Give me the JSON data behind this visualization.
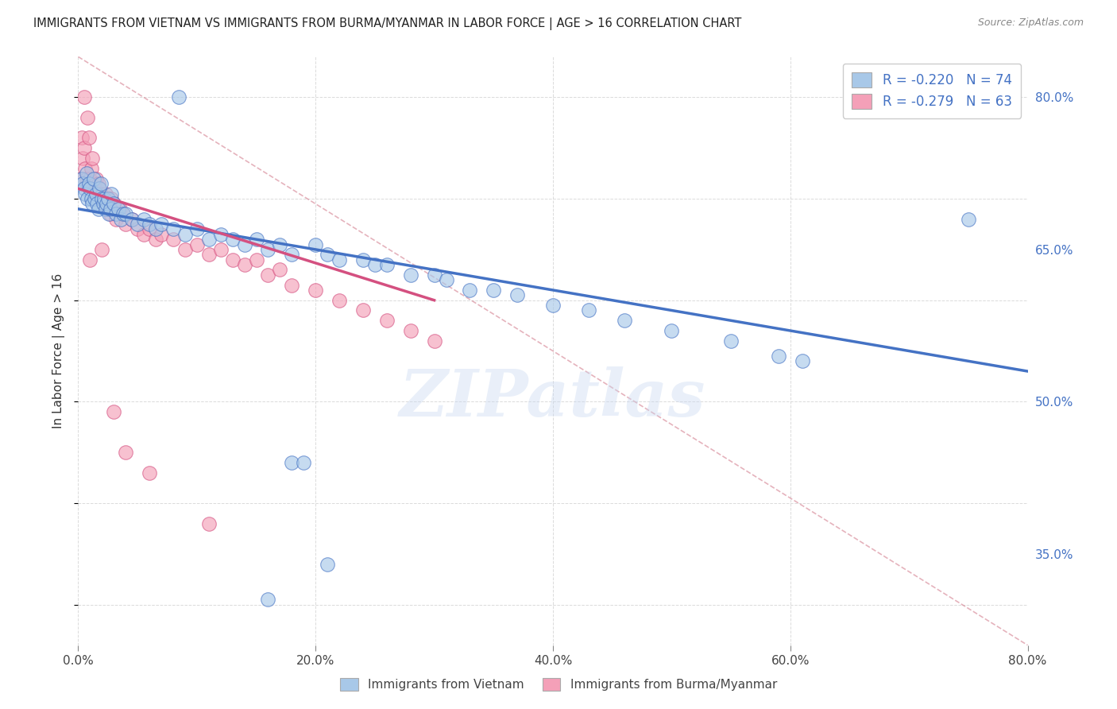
{
  "title": "IMMIGRANTS FROM VIETNAM VS IMMIGRANTS FROM BURMA/MYANMAR IN LABOR FORCE | AGE > 16 CORRELATION CHART",
  "source": "Source: ZipAtlas.com",
  "ylabel": "In Labor Force | Age > 16",
  "x_tick_labels": [
    "0.0%",
    "20.0%",
    "40.0%",
    "60.0%",
    "80.0%"
  ],
  "x_tick_vals": [
    0.0,
    0.2,
    0.4,
    0.6,
    0.8
  ],
  "y_tick_labels_right": [
    "80.0%",
    "65.0%",
    "50.0%",
    "35.0%"
  ],
  "y_tick_vals": [
    0.8,
    0.65,
    0.5,
    0.35
  ],
  "xlim": [
    0.0,
    0.8
  ],
  "ylim": [
    0.26,
    0.84
  ],
  "legend_r_vietnam": "-0.220",
  "legend_n_vietnam": "74",
  "legend_r_burma": "-0.279",
  "legend_n_burma": "63",
  "color_vietnam": "#a8c8e8",
  "color_burma": "#f4a0b8",
  "trendline_color_vietnam": "#4472c4",
  "trendline_color_burma": "#d45080",
  "ref_line_color": "#d48090",
  "watermark": "ZIPatlas",
  "background_color": "#ffffff",
  "grid_color": "#cccccc",
  "vietnam_x": [
    0.003,
    0.004,
    0.005,
    0.006,
    0.007,
    0.008,
    0.009,
    0.01,
    0.011,
    0.012,
    0.013,
    0.014,
    0.015,
    0.016,
    0.017,
    0.018,
    0.019,
    0.02,
    0.021,
    0.022,
    0.023,
    0.024,
    0.025,
    0.026,
    0.027,
    0.028,
    0.03,
    0.032,
    0.034,
    0.036,
    0.038,
    0.04,
    0.045,
    0.05,
    0.055,
    0.06,
    0.065,
    0.07,
    0.08,
    0.09,
    0.1,
    0.11,
    0.12,
    0.13,
    0.14,
    0.15,
    0.16,
    0.17,
    0.18,
    0.2,
    0.21,
    0.22,
    0.24,
    0.25,
    0.26,
    0.28,
    0.3,
    0.31,
    0.33,
    0.35,
    0.37,
    0.4,
    0.43,
    0.46,
    0.5,
    0.55,
    0.59,
    0.61,
    0.75,
    0.18,
    0.19,
    0.085,
    0.16,
    0.21
  ],
  "vietnam_y": [
    0.72,
    0.715,
    0.71,
    0.705,
    0.725,
    0.7,
    0.715,
    0.71,
    0.7,
    0.695,
    0.72,
    0.7,
    0.705,
    0.695,
    0.69,
    0.71,
    0.715,
    0.7,
    0.695,
    0.7,
    0.69,
    0.695,
    0.7,
    0.685,
    0.69,
    0.705,
    0.695,
    0.685,
    0.69,
    0.68,
    0.685,
    0.685,
    0.68,
    0.675,
    0.68,
    0.675,
    0.67,
    0.675,
    0.67,
    0.665,
    0.67,
    0.66,
    0.665,
    0.66,
    0.655,
    0.66,
    0.65,
    0.655,
    0.645,
    0.655,
    0.645,
    0.64,
    0.64,
    0.635,
    0.635,
    0.625,
    0.625,
    0.62,
    0.61,
    0.61,
    0.605,
    0.595,
    0.59,
    0.58,
    0.57,
    0.56,
    0.545,
    0.54,
    0.68,
    0.44,
    0.44,
    0.8,
    0.305,
    0.34
  ],
  "burma_x": [
    0.002,
    0.003,
    0.004,
    0.005,
    0.006,
    0.007,
    0.008,
    0.009,
    0.01,
    0.011,
    0.012,
    0.013,
    0.014,
    0.015,
    0.016,
    0.017,
    0.018,
    0.019,
    0.02,
    0.021,
    0.022,
    0.023,
    0.024,
    0.025,
    0.026,
    0.027,
    0.028,
    0.03,
    0.032,
    0.035,
    0.038,
    0.04,
    0.045,
    0.05,
    0.055,
    0.06,
    0.065,
    0.07,
    0.08,
    0.09,
    0.1,
    0.11,
    0.12,
    0.13,
    0.14,
    0.15,
    0.16,
    0.17,
    0.18,
    0.2,
    0.22,
    0.24,
    0.26,
    0.28,
    0.3,
    0.005,
    0.008,
    0.01,
    0.02,
    0.03,
    0.04,
    0.06,
    0.11
  ],
  "burma_y": [
    0.72,
    0.76,
    0.74,
    0.75,
    0.73,
    0.72,
    0.715,
    0.76,
    0.72,
    0.73,
    0.74,
    0.71,
    0.715,
    0.72,
    0.7,
    0.715,
    0.71,
    0.705,
    0.7,
    0.695,
    0.7,
    0.705,
    0.695,
    0.7,
    0.69,
    0.685,
    0.7,
    0.695,
    0.68,
    0.69,
    0.685,
    0.675,
    0.68,
    0.67,
    0.665,
    0.67,
    0.66,
    0.665,
    0.66,
    0.65,
    0.655,
    0.645,
    0.65,
    0.64,
    0.635,
    0.64,
    0.625,
    0.63,
    0.615,
    0.61,
    0.6,
    0.59,
    0.58,
    0.57,
    0.56,
    0.8,
    0.78,
    0.64,
    0.65,
    0.49,
    0.45,
    0.43,
    0.38
  ],
  "vietnam_trendline_x": [
    0.0,
    0.8
  ],
  "vietnam_trendline_y": [
    0.69,
    0.53
  ],
  "burma_trendline_x": [
    0.0,
    0.3
  ],
  "burma_trendline_y": [
    0.71,
    0.6
  ],
  "ref_line_x": [
    0.0,
    0.8
  ],
  "ref_line_y": [
    0.84,
    0.26
  ]
}
